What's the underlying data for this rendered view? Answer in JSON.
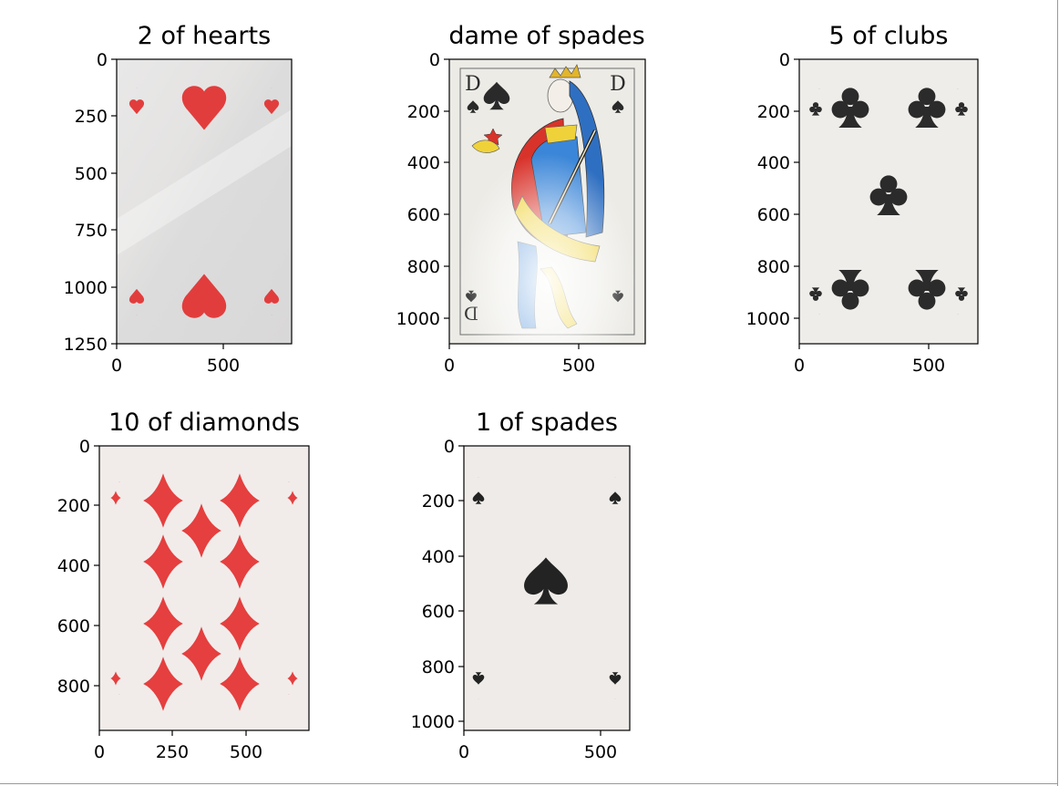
{
  "figure": {
    "subplots": [
      {
        "id": "hearts2",
        "title": "2 of hearts",
        "card": {
          "suit": "hearts",
          "rank": "2",
          "ink": "#e23d3d",
          "paper": "#e3e1e0"
        },
        "x_ticks": [
          "0",
          "500"
        ],
        "y_ticks": [
          "0",
          "250",
          "500",
          "750",
          "1000",
          "1250"
        ]
      },
      {
        "id": "queenSpades",
        "title": "dame of spades",
        "card": {
          "suit": "spades",
          "rank": "D",
          "ink": "#2a2a2a",
          "paper": "#ecebe6"
        },
        "x_ticks": [
          "0",
          "500"
        ],
        "y_ticks": [
          "0",
          "200",
          "400",
          "600",
          "800",
          "1000"
        ]
      },
      {
        "id": "clubs5",
        "title": "5 of clubs",
        "card": {
          "suit": "clubs",
          "rank": "5",
          "ink": "#2b2b2b",
          "paper": "#efedea"
        },
        "x_ticks": [
          "0",
          "500"
        ],
        "y_ticks": [
          "0",
          "200",
          "400",
          "600",
          "800",
          "1000"
        ]
      },
      {
        "id": "diamonds10",
        "title": "10 of diamonds",
        "card": {
          "suit": "diamonds",
          "rank": "10",
          "ink": "#e53f3f",
          "paper": "#f1ecea"
        },
        "x_ticks": [
          "0",
          "250",
          "500"
        ],
        "y_ticks": [
          "0",
          "200",
          "400",
          "600",
          "800"
        ]
      },
      {
        "id": "spades1",
        "title": "1 of spades",
        "card": {
          "suit": "spades",
          "rank": "1",
          "ink": "#232323",
          "paper": "#efebe8"
        },
        "x_ticks": [
          "0",
          "500"
        ],
        "y_ticks": [
          "0",
          "200",
          "400",
          "600",
          "800",
          "1000"
        ]
      }
    ]
  }
}
